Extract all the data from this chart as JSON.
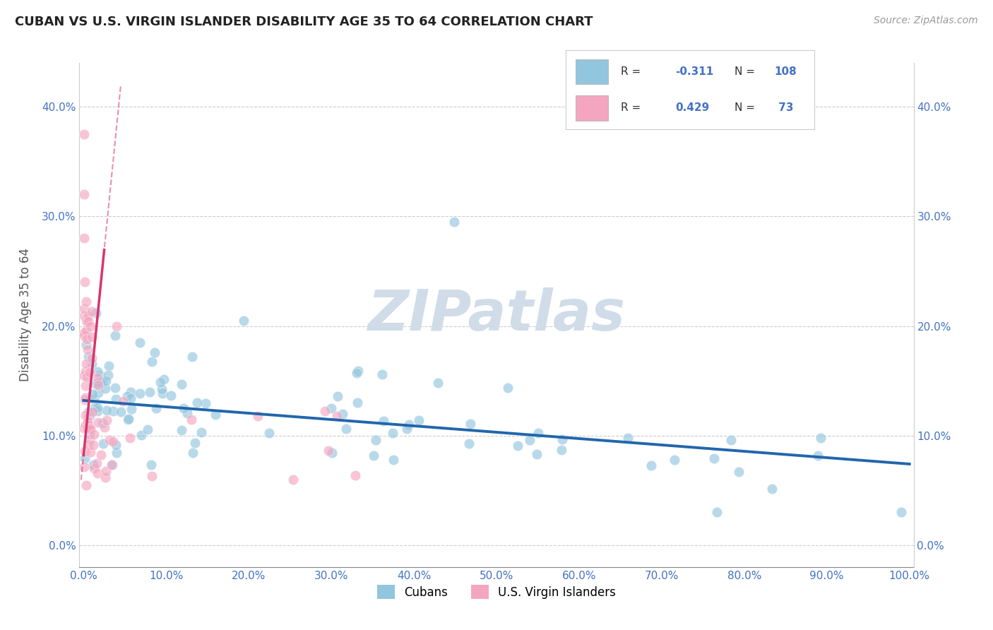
{
  "title": "CUBAN VS U.S. VIRGIN ISLANDER DISABILITY AGE 35 TO 64 CORRELATION CHART",
  "source": "Source: ZipAtlas.com",
  "ylabel": "Disability Age 35 to 64",
  "xlim": [
    -0.005,
    1.005
  ],
  "ylim": [
    -0.02,
    0.44
  ],
  "xticks": [
    0.0,
    0.1,
    0.2,
    0.3,
    0.4,
    0.5,
    0.6,
    0.7,
    0.8,
    0.9,
    1.0
  ],
  "yticks": [
    0.0,
    0.1,
    0.2,
    0.3,
    0.4
  ],
  "ytick_labels": [
    "0.0%",
    "10.0%",
    "20.0%",
    "30.0%",
    "40.0%"
  ],
  "xtick_labels": [
    "0.0%",
    "10.0%",
    "20.0%",
    "30.0%",
    "40.0%",
    "50.0%",
    "60.0%",
    "70.0%",
    "80.0%",
    "90.0%",
    "100.0%"
  ],
  "blue_color": "#92c5de",
  "pink_color": "#f4a6c0",
  "trend_blue": "#2166ac",
  "trend_pink": "#d6356e",
  "watermark_color": "#d0dce8",
  "watermark_text": "ZIPatlas",
  "legend_blue_r": "-0.311",
  "legend_blue_n": "108",
  "legend_pink_r": "0.429",
  "legend_pink_n": " 73",
  "seed": 123
}
